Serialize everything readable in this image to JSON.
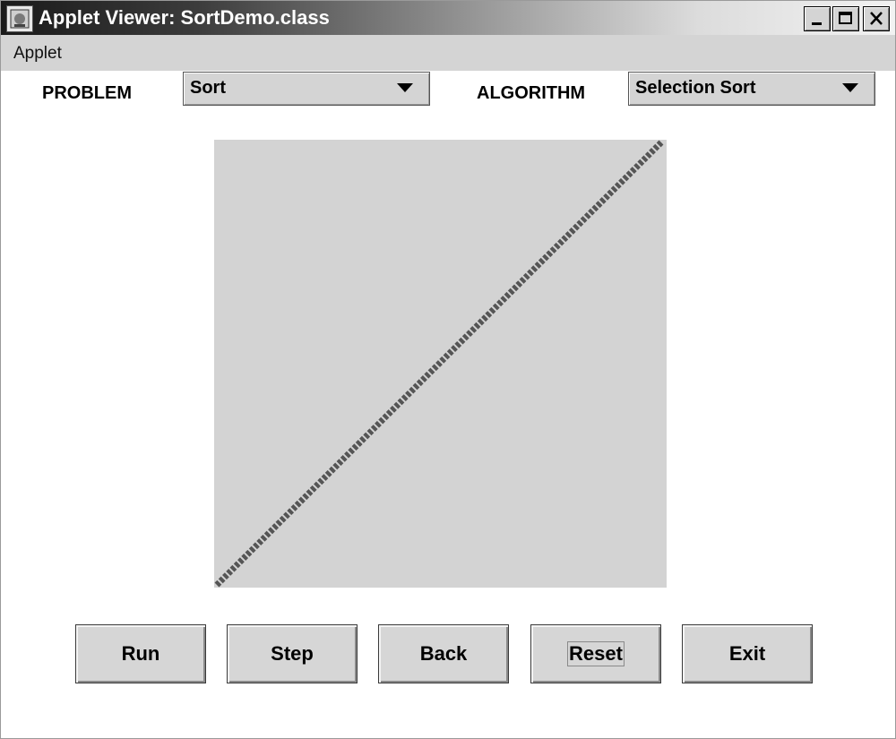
{
  "window": {
    "title": "Applet Viewer: SortDemo.class"
  },
  "menubar": {
    "items": [
      "Applet"
    ]
  },
  "controls": {
    "problem_label": "PROBLEM",
    "problem_value": "Sort",
    "algorithm_label": "ALGORITHM",
    "algorithm_value": "Selection Sort"
  },
  "canvas": {
    "background": "#d3d3d3",
    "line_color": "#555555",
    "trace": "diagonal-ascending"
  },
  "buttons": [
    "Run",
    "Step",
    "Back",
    "Reset",
    "Exit"
  ],
  "focused_button": "Reset"
}
